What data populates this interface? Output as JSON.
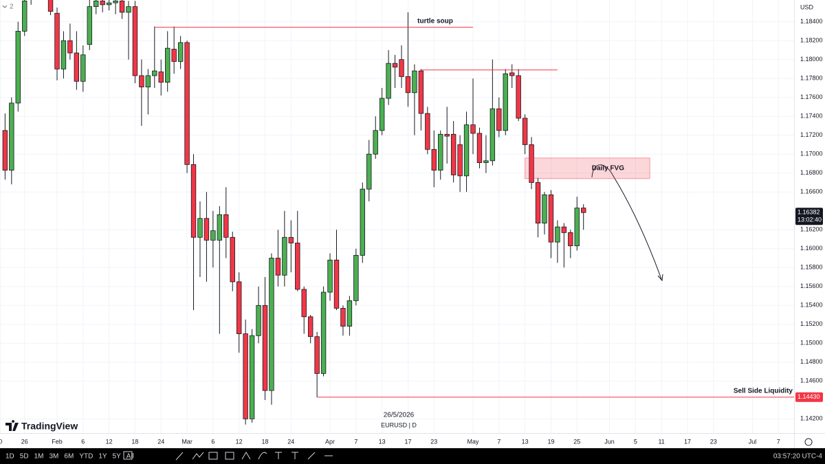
{
  "chart_data": {
    "type": "candlestick",
    "symbol_label": "EURUSD | D",
    "cursor_date": "26/5/2026",
    "currency": "USD",
    "pane_label": "2",
    "logo": "TradingView",
    "up_color": "#4caf50",
    "down_color": "#f23645",
    "grid": true,
    "open": [
      1.1725,
      1.1683,
      1.1754,
      1.183,
      1.1865,
      1.1885,
      1.19,
      1.188,
      1.1849,
      1.179,
      1.182,
      1.1807,
      1.1777,
      1.1816,
      1.1856,
      1.1862,
      1.1858,
      1.186,
      1.1862,
      1.185,
      1.1856,
      1.1783,
      1.1771,
      1.1783,
      1.1787,
      1.1776,
      1.1811,
      1.1798,
      1.1818,
      1.1689,
      1.1612,
      1.1632,
      1.1609,
      1.1609,
      1.1636,
      1.1612,
      1.1565,
      1.151,
      1.142,
      1.1508,
      1.154,
      1.145,
      1.159,
      1.1572,
      1.1612,
      1.1606,
      1.1557,
      1.1528,
      1.1507,
      1.1468,
      1.1554,
      1.1588,
      1.1537,
      1.1518,
      1.1545,
      1.1593,
      1.1663,
      1.17,
      1.1725,
      1.1759,
      1.1796,
      1.18,
      1.1782,
      1.1765,
      1.1788,
      1.1743,
      1.1705,
      1.1683,
      1.1721,
      1.1721,
      1.171,
      1.1677,
      1.1731,
      1.1722,
      1.1691,
      1.1693,
      1.1748,
      1.1725,
      1.1786,
      1.1783,
      1.1738,
      1.171,
      1.167,
      1.1627,
      1.1657,
      1.1607,
      1.1623,
      1.1617,
      1.1603,
      1.1643
    ],
    "high": [
      1.1743,
      1.176,
      1.184,
      1.187,
      1.1895,
      1.191,
      1.192,
      1.189,
      1.1855,
      1.183,
      1.1838,
      1.183,
      1.1815,
      1.1865,
      1.187,
      1.187,
      1.1866,
      1.1866,
      1.1866,
      1.1862,
      1.1862,
      1.18,
      1.179,
      1.1835,
      1.18,
      1.183,
      1.1835,
      1.1825,
      1.182,
      1.17,
      1.165,
      1.166,
      1.164,
      1.1645,
      1.1665,
      1.1618,
      1.1575,
      1.1525,
      1.1515,
      1.156,
      1.157,
      1.1595,
      1.162,
      1.164,
      1.163,
      1.164,
      1.156,
      1.153,
      1.1512,
      1.156,
      1.1595,
      1.162,
      1.154,
      1.155,
      1.16,
      1.167,
      1.1715,
      1.174,
      1.177,
      1.181,
      1.1805,
      1.1815,
      1.185,
      1.1795,
      1.179,
      1.175,
      1.1725,
      1.1725,
      1.175,
      1.1735,
      1.172,
      1.1745,
      1.178,
      1.1728,
      1.172,
      1.18,
      1.176,
      1.179,
      1.1795,
      1.179,
      1.1742,
      1.1718,
      1.1675,
      1.166,
      1.1662,
      1.163,
      1.1627,
      1.162,
      1.1655,
      1.1647
    ],
    "low": [
      1.1673,
      1.1668,
      1.1745,
      1.1825,
      1.1858,
      1.187,
      1.187,
      1.1847,
      1.1778,
      1.178,
      1.18,
      1.1768,
      1.1766,
      1.181,
      1.1848,
      1.185,
      1.1852,
      1.1848,
      1.1843,
      1.18,
      1.1775,
      1.173,
      1.1742,
      1.177,
      1.1762,
      1.1766,
      1.1785,
      1.179,
      1.168,
      1.1535,
      1.157,
      1.1565,
      1.158,
      1.151,
      1.159,
      1.1555,
      1.149,
      1.1414,
      1.1416,
      1.15,
      1.144,
      1.1435,
      1.156,
      1.156,
      1.1575,
      1.1555,
      1.151,
      1.15,
      1.1443,
      1.1465,
      1.1545,
      1.1535,
      1.1508,
      1.1508,
      1.154,
      1.1585,
      1.165,
      1.1695,
      1.172,
      1.1752,
      1.177,
      1.177,
      1.175,
      1.172,
      1.1725,
      1.17,
      1.1665,
      1.1673,
      1.169,
      1.167,
      1.166,
      1.166,
      1.17,
      1.1685,
      1.168,
      1.1688,
      1.1718,
      1.172,
      1.177,
      1.1735,
      1.17,
      1.1663,
      1.1612,
      1.1615,
      1.159,
      1.1585,
      1.158,
      1.159,
      1.1598,
      1.162
    ],
    "close": [
      1.1683,
      1.1754,
      1.183,
      1.1862,
      1.1885,
      1.19,
      1.188,
      1.1851,
      1.179,
      1.182,
      1.1807,
      1.1777,
      1.1805,
      1.1856,
      1.1862,
      1.1858,
      1.186,
      1.1862,
      1.185,
      1.1856,
      1.1783,
      1.1771,
      1.1783,
      1.1788,
      1.1776,
      1.1812,
      1.1798,
      1.1818,
      1.1689,
      1.1612,
      1.1632,
      1.1609,
      1.1619,
      1.1636,
      1.1612,
      1.1565,
      1.151,
      1.142,
      1.1508,
      1.154,
      1.145,
      1.159,
      1.1572,
      1.1612,
      1.1606,
      1.1557,
      1.1528,
      1.1507,
      1.1468,
      1.1554,
      1.1588,
      1.1537,
      1.1518,
      1.1545,
      1.1593,
      1.1663,
      1.17,
      1.1725,
      1.1759,
      1.1796,
      1.1792,
      1.1782,
      1.1765,
      1.1788,
      1.1743,
      1.1705,
      1.1683,
      1.1721,
      1.1719,
      1.1678,
      1.1677,
      1.1731,
      1.1722,
      1.1691,
      1.1693,
      1.1748,
      1.1725,
      1.1785,
      1.1783,
      1.1738,
      1.171,
      1.167,
      1.1627,
      1.1657,
      1.1607,
      1.1623,
      1.1617,
      1.1603,
      1.1643,
      1.16382
    ],
    "last_close_label": "1.16382",
    "countdown": "13:02:40",
    "xlim": [
      -0.78,
      121.4
    ],
    "xticks": [
      {
        "value": -0.7,
        "label": "0"
      },
      {
        "value": 3,
        "label": "26"
      },
      {
        "value": 8,
        "label": "Feb"
      },
      {
        "value": 12,
        "label": "6"
      },
      {
        "value": 16,
        "label": "12"
      },
      {
        "value": 20,
        "label": "18"
      },
      {
        "value": 24,
        "label": "24"
      },
      {
        "value": 28,
        "label": "Mar"
      },
      {
        "value": 32,
        "label": "6"
      },
      {
        "value": 36,
        "label": "12"
      },
      {
        "value": 40,
        "label": "18"
      },
      {
        "value": 44,
        "label": "24"
      },
      {
        "value": 50,
        "label": "Apr"
      },
      {
        "value": 54,
        "label": "7"
      },
      {
        "value": 58,
        "label": "13"
      },
      {
        "value": 62,
        "label": "17"
      },
      {
        "value": 66,
        "label": "23"
      },
      {
        "value": 72,
        "label": "May"
      },
      {
        "value": 76,
        "label": "7"
      },
      {
        "value": 80,
        "label": "13"
      },
      {
        "value": 84,
        "label": "19"
      },
      {
        "value": 88,
        "label": "25"
      },
      {
        "value": 93,
        "label": "Jun"
      },
      {
        "value": 97,
        "label": "5"
      },
      {
        "value": 101,
        "label": "11"
      },
      {
        "value": 105,
        "label": "17"
      },
      {
        "value": 109,
        "label": "23"
      },
      {
        "value": 115,
        "label": "Jul"
      },
      {
        "value": 119,
        "label": "7"
      }
    ],
    "ylim": [
      1.1405,
      1.1863
    ],
    "yticks": [
      {
        "value": 1.142,
        "label": "1.14200"
      },
      {
        "value": 1.146,
        "label": "1.14600"
      },
      {
        "value": 1.148,
        "label": "1.14800"
      },
      {
        "value": 1.15,
        "label": "1.15000"
      },
      {
        "value": 1.152,
        "label": "1.15200"
      },
      {
        "value": 1.154,
        "label": "1.15400"
      },
      {
        "value": 1.156,
        "label": "1.15600"
      },
      {
        "value": 1.158,
        "label": "1.15800"
      },
      {
        "value": 1.16,
        "label": "1.16000"
      },
      {
        "value": 1.162,
        "label": "1.16200"
      },
      {
        "value": 1.166,
        "label": "1.16600"
      },
      {
        "value": 1.168,
        "label": "1.16800"
      },
      {
        "value": 1.17,
        "label": "1.17000"
      },
      {
        "value": 1.172,
        "label": "1.17200"
      },
      {
        "value": 1.174,
        "label": "1.17400"
      },
      {
        "value": 1.176,
        "label": "1.17600"
      },
      {
        "value": 1.178,
        "label": "1.17800"
      },
      {
        "value": 1.18,
        "label": "1.18000"
      },
      {
        "value": 1.182,
        "label": "1.18200"
      },
      {
        "value": 1.184,
        "label": "1.18400"
      }
    ],
    "lines": [
      {
        "label": "turtle soup",
        "price": 1.18342,
        "start": 23,
        "end": 72
      },
      {
        "price": 1.1789,
        "start": 64,
        "end": 85
      },
      {
        "label": "Sell Side Liquidity",
        "price": 1.1443,
        "price_label": "1.14430",
        "start": 48
      }
    ],
    "zone": {
      "label": "Daily FVG",
      "top": 1.16959,
      "bottom": 1.16741,
      "start": 80,
      "end": 99.2
    }
  },
  "toolbar": {
    "ranges": [
      "1D",
      "5D",
      "1M",
      "3M",
      "6M",
      "YTD",
      "1Y",
      "5Y",
      "All"
    ],
    "clock": "03:57:20 UTC-4"
  }
}
